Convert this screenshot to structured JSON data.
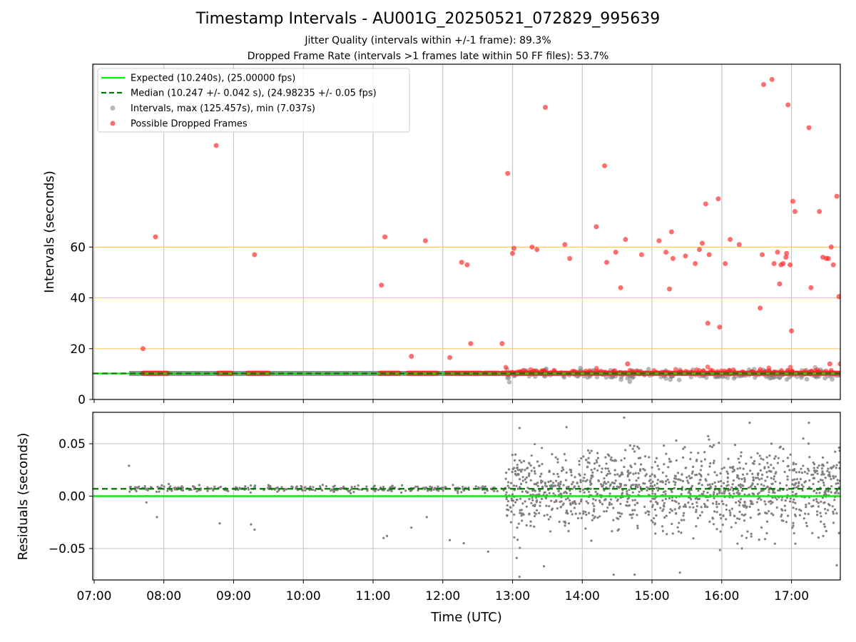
{
  "title": "Timestamp Intervals - AU001G_20250521_072829_995639",
  "subtitle_1": "Jitter Quality (intervals within +/-1 frame): 89.3%",
  "subtitle_2": "Dropped Frame Rate (intervals >1 frames late within 50 FF files): 53.7%",
  "colors": {
    "expected": "#00ee00",
    "median": "#007700",
    "intervals": "#808080",
    "dropped": "#ff2020",
    "threshold": "#ffcc66",
    "grid": "#c8c8c8"
  },
  "chart_data": [
    {
      "type": "scatter",
      "ylabel": "Intervals (seconds)",
      "ylim": [
        0,
        132
      ],
      "yticks": [
        0,
        20,
        40,
        60
      ],
      "threshold_lines": [
        20,
        40,
        60
      ],
      "grid": true,
      "legend_position": "top-left",
      "legend": [
        "Expected (10.240s), (25.00000 fps)",
        "Median (10.247 +/- 0.042 s), (24.98235 +/- 0.05 fps)",
        "Intervals, max (125.457s), min (7.037s)",
        "Possible Dropped Frames"
      ],
      "expected_value": 10.24,
      "median_value": 10.247,
      "interval_band": {
        "x_start": 7.5,
        "x_end": 17.7,
        "y": 10.25
      },
      "dropped_segments": [
        [
          7.7,
          8.05
        ],
        [
          8.78,
          8.97
        ],
        [
          9.2,
          9.5
        ],
        [
          11.1,
          11.37
        ],
        [
          11.5,
          11.92
        ],
        [
          12.05,
          12.55
        ],
        [
          12.6,
          12.8
        ],
        [
          12.85,
          17.7
        ]
      ],
      "dropped_points": [
        [
          7.7,
          20
        ],
        [
          7.88,
          64
        ],
        [
          8.75,
          100
        ],
        [
          9.3,
          57
        ],
        [
          11.12,
          45
        ],
        [
          11.17,
          64
        ],
        [
          11.55,
          17
        ],
        [
          11.75,
          62.5
        ],
        [
          12.1,
          16.5
        ],
        [
          12.27,
          54
        ],
        [
          12.35,
          53
        ],
        [
          12.4,
          22
        ],
        [
          12.85,
          22
        ],
        [
          12.93,
          89
        ],
        [
          13.0,
          57.5
        ],
        [
          13.02,
          59.5
        ],
        [
          13.28,
          60
        ],
        [
          13.35,
          59
        ],
        [
          13.47,
          115
        ],
        [
          13.75,
          61
        ],
        [
          13.82,
          55.5
        ],
        [
          14.2,
          68
        ],
        [
          14.32,
          92
        ],
        [
          14.35,
          54
        ],
        [
          14.48,
          58
        ],
        [
          14.55,
          44
        ],
        [
          14.62,
          63
        ],
        [
          14.65,
          14
        ],
        [
          14.85,
          57
        ],
        [
          15.1,
          62.5
        ],
        [
          15.2,
          58
        ],
        [
          15.25,
          43.5
        ],
        [
          15.28,
          66
        ],
        [
          15.3,
          55.5
        ],
        [
          15.48,
          56.5
        ],
        [
          15.62,
          53.5
        ],
        [
          15.68,
          59
        ],
        [
          15.72,
          61.5
        ],
        [
          15.77,
          77
        ],
        [
          15.8,
          30
        ],
        [
          15.82,
          57
        ],
        [
          15.95,
          79
        ],
        [
          15.97,
          28.5
        ],
        [
          16.05,
          53.5
        ],
        [
          16.12,
          63
        ],
        [
          16.25,
          61
        ],
        [
          16.55,
          36
        ],
        [
          16.58,
          57
        ],
        [
          16.6,
          124
        ],
        [
          16.72,
          126
        ],
        [
          16.75,
          53.5
        ],
        [
          16.8,
          58
        ],
        [
          16.83,
          45.5
        ],
        [
          16.85,
          53
        ],
        [
          16.88,
          53.5
        ],
        [
          16.92,
          56
        ],
        [
          16.93,
          57.5
        ],
        [
          16.95,
          116
        ],
        [
          16.98,
          53
        ],
        [
          17.0,
          27
        ],
        [
          17.02,
          78
        ],
        [
          17.05,
          74
        ],
        [
          17.25,
          107
        ],
        [
          17.28,
          44
        ],
        [
          17.4,
          74
        ],
        [
          17.45,
          56
        ],
        [
          17.5,
          55.5
        ],
        [
          17.53,
          55.5
        ],
        [
          17.57,
          60
        ],
        [
          17.6,
          53
        ],
        [
          17.65,
          80
        ],
        [
          17.68,
          40.5
        ],
        [
          17.55,
          14
        ],
        [
          17.7,
          14
        ]
      ]
    },
    {
      "type": "scatter",
      "ylabel": "Residuals (seconds)",
      "xlabel": "Time (UTC)",
      "ylim": [
        -0.08,
        0.08
      ],
      "yticks": [
        -0.05,
        0.0,
        0.05
      ],
      "ytick_labels": [
        "−0.05",
        "0.00",
        "0.05"
      ],
      "grid": true,
      "xlim": [
        6.98,
        17.7
      ],
      "xticks": [
        "07:00",
        "08:00",
        "09:00",
        "10:00",
        "11:00",
        "12:00",
        "13:00",
        "14:00",
        "15:00",
        "16:00",
        "17:00"
      ],
      "expected_value": 0.0,
      "median_value": 0.007,
      "stable_period": {
        "x_start": 7.5,
        "x_end": 12.9,
        "y_center": 0.007,
        "spread": 0.003
      },
      "noisy_period": {
        "x_start": 12.9,
        "x_end": 17.7,
        "y_center": 0.005,
        "spread": 0.035
      },
      "outliers": [
        [
          7.5,
          0.029
        ],
        [
          7.75,
          -0.006
        ],
        [
          7.9,
          -0.02
        ],
        [
          8.8,
          -0.026
        ],
        [
          9.25,
          -0.027
        ],
        [
          9.3,
          -0.032
        ],
        [
          11.15,
          -0.04
        ],
        [
          11.2,
          -0.038
        ],
        [
          11.55,
          -0.03
        ],
        [
          11.77,
          -0.02
        ],
        [
          12.1,
          -0.042
        ],
        [
          12.3,
          -0.045
        ],
        [
          12.65,
          -0.053
        ],
        [
          13.1,
          0.065
        ],
        [
          13.1,
          -0.077
        ],
        [
          13.45,
          -0.067
        ],
        [
          14.45,
          -0.075
        ],
        [
          14.6,
          0.075
        ],
        [
          14.75,
          -0.075
        ],
        [
          15.4,
          -0.073
        ],
        [
          16.4,
          0.07
        ],
        [
          17.25,
          0.07
        ],
        [
          17.65,
          -0.066
        ]
      ]
    }
  ]
}
